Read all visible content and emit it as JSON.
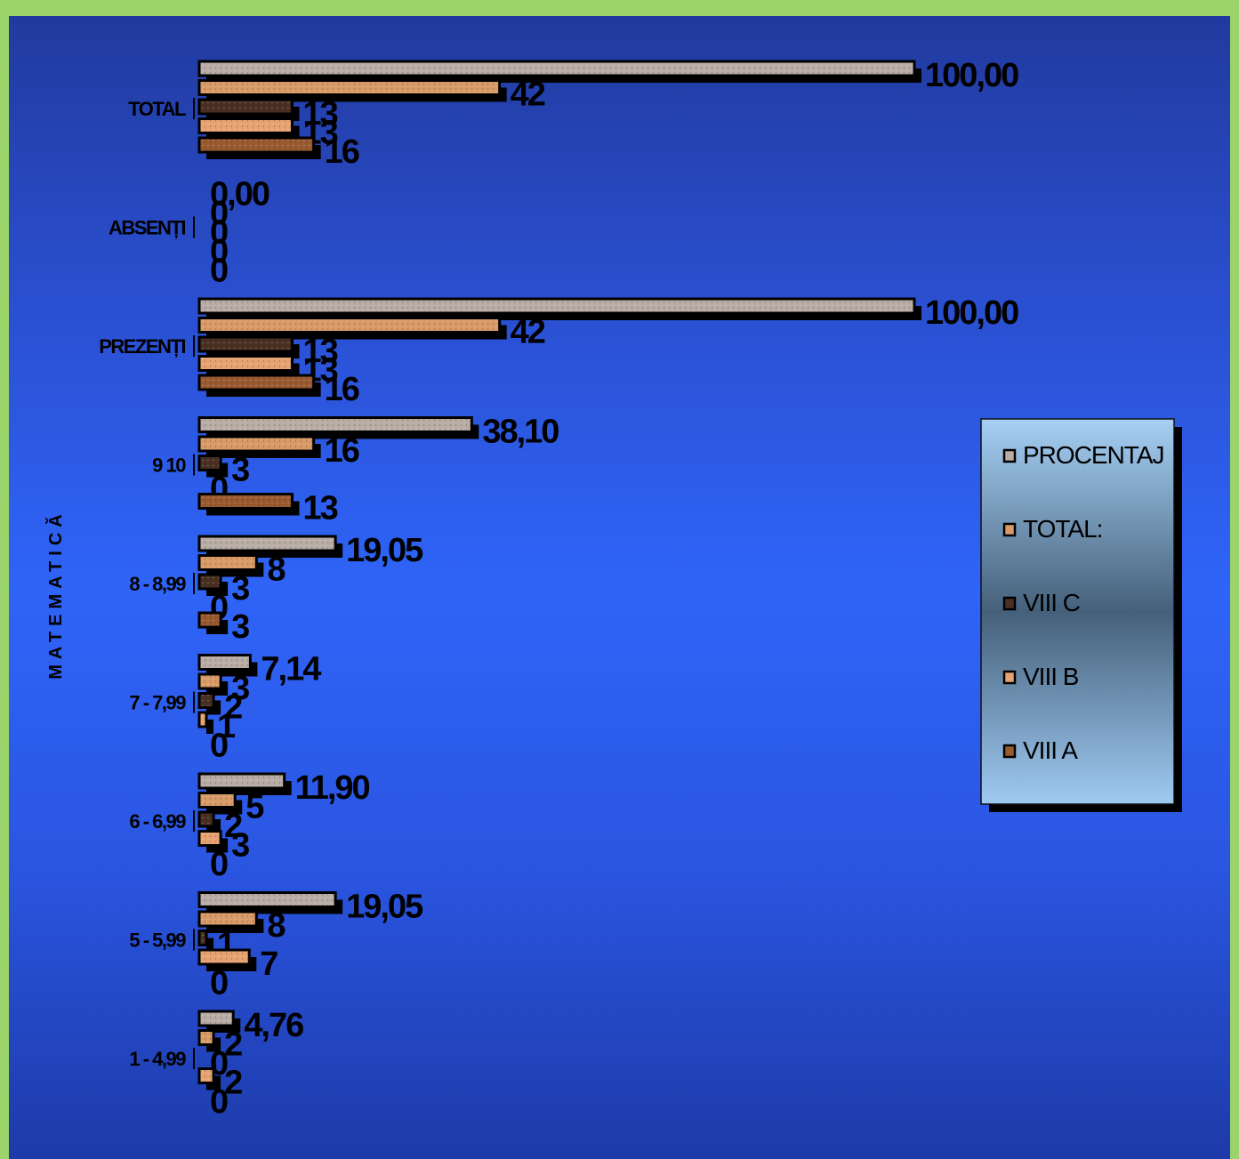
{
  "chart_data": {
    "type": "bar",
    "orientation": "horizontal",
    "ylabel": "MATEMATICĂ",
    "categories": [
      "TOTAL",
      "ABSENȚI",
      "PREZENȚI",
      "9    10",
      "8 - 8,99",
      "7 - 7,99",
      "6 - 6,99",
      "5 - 5,99",
      "1 - 4,99"
    ],
    "series": [
      {
        "name": "PROCENTAJ",
        "values": [
          100.0,
          0.0,
          100.0,
          38.1,
          19.05,
          7.14,
          11.9,
          19.05,
          4.76
        ],
        "labels": [
          "100,00",
          "0,00",
          "100,00",
          "38,10",
          "19,05",
          "7,14",
          "11,90",
          "19,05",
          "4,76"
        ],
        "color": "#b8aca4"
      },
      {
        "name": "TOTAL:",
        "values": [
          42,
          0,
          42,
          16,
          8,
          3,
          5,
          8,
          2
        ],
        "labels": [
          "42",
          "0",
          "42",
          "16",
          "8",
          "3",
          "5",
          "8",
          "2"
        ],
        "color": "#d89a66"
      },
      {
        "name": "VIII C",
        "values": [
          13,
          0,
          13,
          3,
          3,
          2,
          2,
          1,
          0
        ],
        "labels": [
          "13",
          "0",
          "13",
          "3",
          "3",
          "2",
          "2",
          "1",
          "0"
        ],
        "color": "#4a3022"
      },
      {
        "name": "VIII B",
        "values": [
          13,
          0,
          13,
          0,
          0,
          1,
          3,
          7,
          2
        ],
        "labels": [
          "13",
          "0",
          "13",
          "0",
          "0",
          "1",
          "3",
          "7",
          "2"
        ],
        "color": "#e6a270"
      },
      {
        "name": "VIII A",
        "values": [
          16,
          0,
          16,
          13,
          3,
          0,
          0,
          0,
          0
        ],
        "labels": [
          "16",
          "0",
          "16",
          "13",
          "3",
          "0",
          "0",
          "0",
          "0"
        ],
        "color": "#9a5a30"
      }
    ],
    "legend_position": "right",
    "legend": [
      "PROCENTAJ",
      "TOTAL:",
      "VIII C",
      "VIII B",
      "VIII A"
    ],
    "xlim": [
      0,
      100
    ],
    "grid": false
  }
}
